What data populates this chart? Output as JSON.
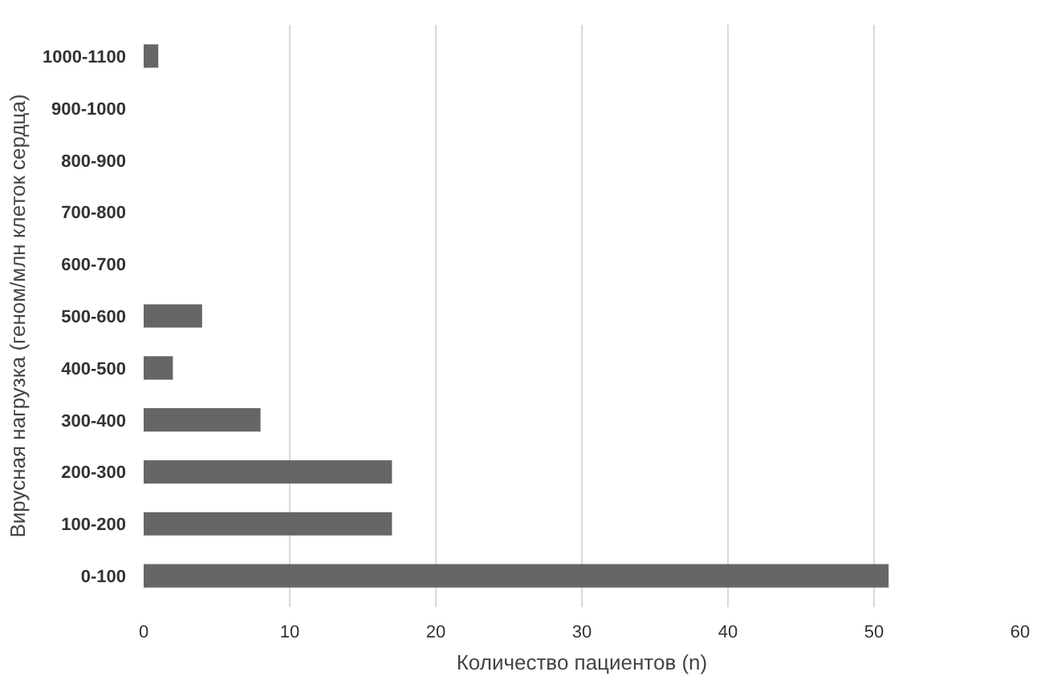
{
  "chart_data": {
    "type": "bar",
    "orientation": "horizontal",
    "xlabel": "Количество пациентов (n)",
    "ylabel": "Вирусная нагрузка (геном/млн клеток сердца)",
    "categories": [
      "1000-1100",
      "900-1000",
      "800-900",
      "700-800",
      "600-700",
      "500-600",
      "400-500",
      "300-400",
      "200-300",
      "100-200",
      "0-100"
    ],
    "values": [
      1,
      0,
      0,
      0,
      0,
      4,
      2,
      8,
      17,
      17,
      51
    ],
    "color": "#666666",
    "xlim": [
      0,
      60
    ],
    "xticks": [
      0,
      10,
      20,
      30,
      40,
      50,
      60
    ],
    "grid": "x"
  }
}
